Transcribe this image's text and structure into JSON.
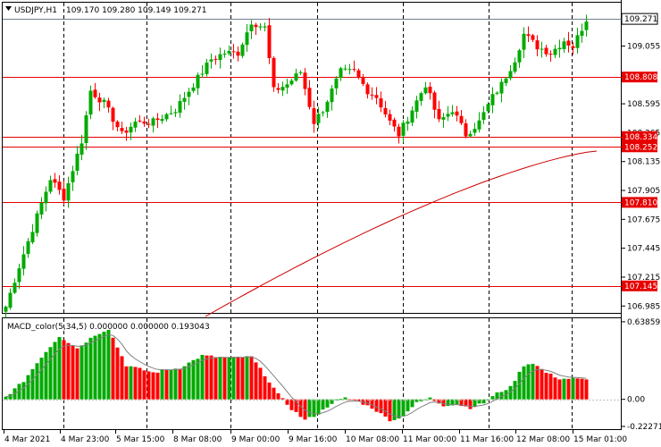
{
  "chart_title": {
    "symbol_timeframe": "USDJPY,H1",
    "ohlc": "109.170 109.280 109.149 109.271"
  },
  "price_axis": {
    "ticks": [
      "109.055",
      "108.595",
      "108.365",
      "108.135",
      "107.905",
      "107.675",
      "107.445",
      "107.215",
      "106.985"
    ],
    "current_price_label": "109.271",
    "range": [
      106.93,
      109.4
    ]
  },
  "levels": [
    {
      "label": "108.808",
      "value": 108.808
    },
    {
      "label": "108.334",
      "value": 108.334
    },
    {
      "label": "108.252",
      "value": 108.252
    },
    {
      "label": "107.810",
      "value": 107.81
    },
    {
      "label": "107.145",
      "value": 107.145
    }
  ],
  "time_axis": {
    "labels": [
      "4 Mar 2021",
      "4 Mar 23:00",
      "5 Mar 15:00",
      "8 Mar 08:00",
      "9 Mar 00:00",
      "9 Mar 16:00",
      "10 Mar 08:00",
      "11 Mar 00:00",
      "11 Mar 16:00",
      "12 Mar 08:00",
      "15 Mar 01:00"
    ]
  },
  "macd": {
    "title": "MACD_color(5,34,5) 0.000000 0.000000 0.193043",
    "ticks": [
      "0.63859",
      "0.00",
      "-0.222711"
    ],
    "range": [
      -0.245,
      0.66
    ]
  },
  "colors": {
    "bull": "#00aa00",
    "bear": "#ff0000",
    "level_line": "#e60000",
    "ma_line": "#cc0000",
    "grid": "#000000"
  },
  "chart_data": {
    "type": "candlestick",
    "anchors": [
      [
        0,
        106.98
      ],
      [
        3,
        107.3
      ],
      [
        6,
        107.6
      ],
      [
        10,
        108.0
      ],
      [
        13,
        107.85
      ],
      [
        17,
        108.3
      ],
      [
        19,
        108.7
      ],
      [
        22,
        108.6
      ],
      [
        26,
        108.35
      ],
      [
        29,
        108.45
      ],
      [
        33,
        108.45
      ],
      [
        38,
        108.55
      ],
      [
        42,
        108.75
      ],
      [
        46,
        108.95
      ],
      [
        49,
        109.0
      ],
      [
        52,
        109.0
      ],
      [
        55,
        109.25
      ],
      [
        58,
        109.2
      ],
      [
        60,
        108.7
      ],
      [
        63,
        108.75
      ],
      [
        66,
        108.85
      ],
      [
        69,
        108.45
      ],
      [
        71,
        108.55
      ],
      [
        75,
        108.85
      ],
      [
        78,
        108.85
      ],
      [
        81,
        108.7
      ],
      [
        83,
        108.65
      ],
      [
        86,
        108.45
      ],
      [
        88,
        108.35
      ],
      [
        91,
        108.55
      ],
      [
        94,
        108.75
      ],
      [
        97,
        108.45
      ],
      [
        100,
        108.55
      ],
      [
        103,
        108.35
      ],
      [
        106,
        108.45
      ],
      [
        109,
        108.65
      ],
      [
        111,
        108.75
      ],
      [
        114,
        108.95
      ],
      [
        116,
        109.15
      ],
      [
        119,
        109.05
      ],
      [
        122,
        109.0
      ],
      [
        125,
        109.1
      ],
      [
        127,
        109.05
      ],
      [
        130,
        109.27
      ]
    ],
    "ma_start": [
      230,
      354
    ],
    "ma_end": [
      668,
      169
    ],
    "macd_anchors": [
      [
        0,
        0.02
      ],
      [
        4,
        0.15
      ],
      [
        8,
        0.35
      ],
      [
        12,
        0.52
      ],
      [
        16,
        0.42
      ],
      [
        20,
        0.53
      ],
      [
        23,
        0.58
      ],
      [
        27,
        0.28
      ],
      [
        33,
        0.22
      ],
      [
        39,
        0.26
      ],
      [
        44,
        0.36
      ],
      [
        50,
        0.34
      ],
      [
        55,
        0.35
      ],
      [
        58,
        0.2
      ],
      [
        61,
        0.04
      ],
      [
        64,
        -0.08
      ],
      [
        67,
        -0.17
      ],
      [
        70,
        -0.12
      ],
      [
        73,
        -0.03
      ],
      [
        76,
        0.01
      ],
      [
        79,
        -0.02
      ],
      [
        82,
        -0.07
      ],
      [
        86,
        -0.17
      ],
      [
        88,
        -0.16
      ],
      [
        92,
        -0.03
      ],
      [
        95,
        0.01
      ],
      [
        98,
        -0.05
      ],
      [
        101,
        -0.04
      ],
      [
        104,
        -0.07
      ],
      [
        107,
        -0.03
      ],
      [
        110,
        0.05
      ],
      [
        113,
        0.1
      ],
      [
        116,
        0.28
      ],
      [
        118,
        0.3
      ],
      [
        121,
        0.22
      ],
      [
        124,
        0.17
      ],
      [
        127,
        0.17
      ],
      [
        130,
        0.16
      ]
    ]
  }
}
